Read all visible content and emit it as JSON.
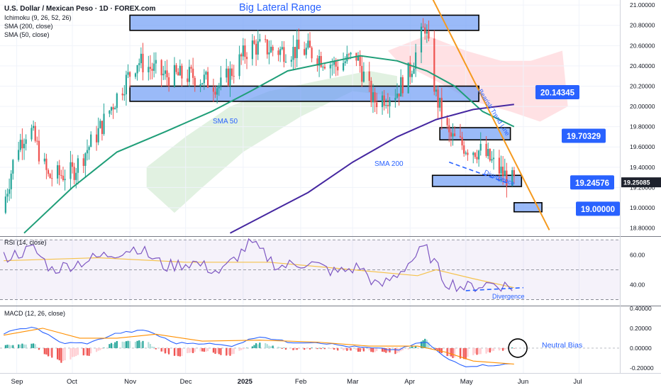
{
  "header": {
    "title": "U.S. Dollar / Mexican Peso · 1D · FOREX.com",
    "indicators": [
      "Ichimoku (9, 26, 52, 26)",
      "SMA (200, close)",
      "SMA (50, close)"
    ]
  },
  "colors": {
    "up": "#26a69a",
    "down": "#ef5350",
    "sma50": "#1f9e78",
    "sma200": "#4527a0",
    "trendline": "#f59a1f",
    "zone_fill": "#6f9cf5",
    "tag_fill": "#2962ff",
    "cloud_green": "#c8e6c9",
    "cloud_red": "#ffcdd2",
    "rsi_line": "#7e57c2",
    "rsi_ma": "#f5c24c",
    "macd_line": "#2962ff",
    "signal_line": "#ff8f00"
  },
  "chart_data": [
    {
      "type": "candlestick",
      "title": "U.S. Dollar / Mexican Peso · 1D · FOREX.com",
      "ylim": [
        18.72,
        21.05
      ],
      "y_ticks": [
        "21.00000",
        "20.80000",
        "20.60000",
        "20.40000",
        "20.20000",
        "20.00000",
        "19.80000",
        "19.60000",
        "19.40000",
        "19.20000",
        "19.00000",
        "18.80000"
      ],
      "x_ticks": [
        "Sep",
        "Oct",
        "Nov",
        "Dec",
        "2025",
        "Feb",
        "Mar",
        "Apr",
        "May",
        "Jun",
        "Jul"
      ],
      "x_range": [
        "2024-08-23",
        "2025-07-23"
      ],
      "price_anchors": [
        {
          "date": "2024-08-24",
          "close": 18.95
        },
        {
          "date": "2024-09-01",
          "close": 19.6
        },
        {
          "date": "2024-09-08",
          "close": 19.8
        },
        {
          "date": "2024-09-18",
          "close": 19.3
        },
        {
          "date": "2024-10-01",
          "close": 19.35
        },
        {
          "date": "2024-10-15",
          "close": 19.75
        },
        {
          "date": "2024-10-25",
          "close": 20.1
        },
        {
          "date": "2024-11-05",
          "close": 20.45
        },
        {
          "date": "2024-11-20",
          "close": 20.3
        },
        {
          "date": "2024-12-05",
          "close": 20.3
        },
        {
          "date": "2024-12-20",
          "close": 20.2
        },
        {
          "date": "2025-01-05",
          "close": 20.6
        },
        {
          "date": "2025-01-20",
          "close": 20.55
        },
        {
          "date": "2025-02-05",
          "close": 20.55
        },
        {
          "date": "2025-02-20",
          "close": 20.4
        },
        {
          "date": "2025-03-03",
          "close": 20.5
        },
        {
          "date": "2025-03-12",
          "close": 20.05
        },
        {
          "date": "2025-03-25",
          "close": 20.15
        },
        {
          "date": "2025-04-01",
          "close": 20.35
        },
        {
          "date": "2025-04-09",
          "close": 20.8
        },
        {
          "date": "2025-04-15",
          "close": 20.1
        },
        {
          "date": "2025-04-22",
          "close": 19.7
        },
        {
          "date": "2025-05-01",
          "close": 19.6
        },
        {
          "date": "2025-05-10",
          "close": 19.55
        },
        {
          "date": "2025-05-20",
          "close": 19.35
        },
        {
          "date": "2025-05-27",
          "close": 19.25
        }
      ],
      "sma_50": [
        {
          "date": "2024-09-05",
          "value": 18.75
        },
        {
          "date": "2024-10-01",
          "value": 19.2
        },
        {
          "date": "2024-10-25",
          "value": 19.55
        },
        {
          "date": "2024-11-20",
          "value": 19.75
        },
        {
          "date": "2024-12-15",
          "value": 19.95
        },
        {
          "date": "2025-01-05",
          "value": 20.15
        },
        {
          "date": "2025-01-25",
          "value": 20.35
        },
        {
          "date": "2025-02-20",
          "value": 20.45
        },
        {
          "date": "2025-03-05",
          "value": 20.5
        },
        {
          "date": "2025-03-25",
          "value": 20.45
        },
        {
          "date": "2025-04-10",
          "value": 20.35
        },
        {
          "date": "2025-04-25",
          "value": 20.2
        },
        {
          "date": "2025-05-10",
          "value": 19.95
        },
        {
          "date": "2025-05-27",
          "value": 19.8
        }
      ],
      "sma_200": [
        {
          "date": "2024-12-25",
          "value": 18.75
        },
        {
          "date": "2025-01-15",
          "value": 18.95
        },
        {
          "date": "2025-02-05",
          "value": 19.15
        },
        {
          "date": "2025-03-01",
          "value": 19.45
        },
        {
          "date": "2025-03-25",
          "value": 19.7
        },
        {
          "date": "2025-04-15",
          "value": 19.87
        },
        {
          "date": "2025-05-05",
          "value": 19.97
        },
        {
          "date": "2025-05-27",
          "value": 20.02
        }
      ],
      "zones": [
        {
          "label": "Big Lateral Range",
          "from": "2024-11-01",
          "to": "2025-05-08",
          "low": 20.75,
          "high": 20.9
        },
        {
          "label": "",
          "from": "2024-11-01",
          "to": "2025-05-08",
          "low": 20.05,
          "high": 20.2
        },
        {
          "label": "",
          "from": "2025-04-17",
          "to": "2025-05-25",
          "low": 19.67,
          "high": 19.79
        },
        {
          "label": "",
          "from": "2025-04-13",
          "to": "2025-05-31",
          "low": 19.21,
          "high": 19.32
        },
        {
          "label": "",
          "from": "2025-05-27",
          "to": "2025-06-11",
          "low": 18.96,
          "high": 19.05
        }
      ],
      "trendline": {
        "label": "Bearish Trend Line",
        "from": {
          "date": "2025-04-01",
          "value": 21.5
        },
        "to": {
          "date": "2025-06-15",
          "value": 18.78
        }
      },
      "divergence_line": {
        "label": "Divergence",
        "from": {
          "date": "2025-04-22",
          "value": 19.45
        },
        "to": {
          "date": "2025-05-24",
          "value": 19.24
        }
      },
      "price_tags": [
        {
          "label": "20.14345",
          "value": 20.14
        },
        {
          "label": "19.70329",
          "value": 19.71
        },
        {
          "label": "19.24576",
          "value": 19.25
        },
        {
          "label": "19.00000",
          "value": 18.99
        }
      ],
      "last_price": "19.25085",
      "annotations": [
        "Big Lateral Range",
        "SMA 50",
        "SMA 200",
        "Bearish Trend Line",
        "Divergence"
      ]
    },
    {
      "type": "line",
      "title": "RSI (14, close)",
      "ylim": [
        26,
        72
      ],
      "y_ticks": [
        "60.00",
        "40.00"
      ],
      "overbought": 70,
      "midline": 50,
      "oversold": 30,
      "rsi": [
        {
          "date": "2024-08-25",
          "value": 58
        },
        {
          "date": "2024-09-10",
          "value": 64
        },
        {
          "date": "2024-09-20",
          "value": 50
        },
        {
          "date": "2024-10-05",
          "value": 55
        },
        {
          "date": "2024-10-20",
          "value": 60
        },
        {
          "date": "2024-11-05",
          "value": 65
        },
        {
          "date": "2024-11-20",
          "value": 52
        },
        {
          "date": "2024-12-05",
          "value": 55
        },
        {
          "date": "2024-12-20",
          "value": 48
        },
        {
          "date": "2025-01-05",
          "value": 68
        },
        {
          "date": "2025-01-20",
          "value": 52
        },
        {
          "date": "2025-02-05",
          "value": 55
        },
        {
          "date": "2025-02-20",
          "value": 48
        },
        {
          "date": "2025-03-05",
          "value": 52
        },
        {
          "date": "2025-03-15",
          "value": 38
        },
        {
          "date": "2025-03-25",
          "value": 47
        },
        {
          "date": "2025-04-09",
          "value": 65
        },
        {
          "date": "2025-04-20",
          "value": 42
        },
        {
          "date": "2025-05-01",
          "value": 38
        },
        {
          "date": "2025-05-15",
          "value": 41
        },
        {
          "date": "2025-05-27",
          "value": 38
        }
      ],
      "rsi_ma": [
        {
          "date": "2024-08-25",
          "value": 56
        },
        {
          "date": "2024-10-15",
          "value": 58
        },
        {
          "date": "2024-12-01",
          "value": 55
        },
        {
          "date": "2025-01-15",
          "value": 55
        },
        {
          "date": "2025-03-01",
          "value": 50
        },
        {
          "date": "2025-04-05",
          "value": 46
        },
        {
          "date": "2025-04-15",
          "value": 50
        },
        {
          "date": "2025-05-05",
          "value": 44
        },
        {
          "date": "2025-05-27",
          "value": 38
        }
      ],
      "divergence_line": {
        "label": "Divergence",
        "from": {
          "date": "2025-05-01",
          "value": 36
        },
        "to": {
          "date": "2025-06-01",
          "value": 38
        }
      }
    },
    {
      "type": "bar",
      "title": "MACD (12, 26, close)",
      "ylim": [
        -0.25,
        0.42
      ],
      "y_ticks": [
        "0.40000",
        "0.20000",
        "0.00000",
        "-0.20000"
      ],
      "macd": [
        {
          "date": "2024-08-25",
          "value": 0.15
        },
        {
          "date": "2024-09-10",
          "value": 0.22
        },
        {
          "date": "2024-09-25",
          "value": 0.05
        },
        {
          "date": "2024-10-10",
          "value": 0.05
        },
        {
          "date": "2024-10-25",
          "value": 0.15
        },
        {
          "date": "2024-11-10",
          "value": 0.18
        },
        {
          "date": "2024-11-25",
          "value": 0.05
        },
        {
          "date": "2024-12-10",
          "value": 0.05
        },
        {
          "date": "2024-12-25",
          "value": 0.02
        },
        {
          "date": "2025-01-10",
          "value": 0.12
        },
        {
          "date": "2025-01-25",
          "value": 0.06
        },
        {
          "date": "2025-02-10",
          "value": 0.06
        },
        {
          "date": "2025-02-25",
          "value": 0.02
        },
        {
          "date": "2025-03-10",
          "value": 0.0
        },
        {
          "date": "2025-03-25",
          "value": -0.02
        },
        {
          "date": "2025-04-09",
          "value": 0.07
        },
        {
          "date": "2025-04-20",
          "value": -0.1
        },
        {
          "date": "2025-05-01",
          "value": -0.18
        },
        {
          "date": "2025-05-15",
          "value": -0.17
        },
        {
          "date": "2025-05-27",
          "value": -0.16
        }
      ],
      "signal": [
        {
          "date": "2024-08-25",
          "value": 0.13
        },
        {
          "date": "2024-09-15",
          "value": 0.2
        },
        {
          "date": "2024-10-05",
          "value": 0.1
        },
        {
          "date": "2024-10-25",
          "value": 0.1
        },
        {
          "date": "2024-11-15",
          "value": 0.14
        },
        {
          "date": "2024-12-10",
          "value": 0.07
        },
        {
          "date": "2025-01-10",
          "value": 0.08
        },
        {
          "date": "2025-02-10",
          "value": 0.06
        },
        {
          "date": "2025-03-10",
          "value": 0.02
        },
        {
          "date": "2025-04-05",
          "value": 0.02
        },
        {
          "date": "2025-04-20",
          "value": -0.04
        },
        {
          "date": "2025-05-05",
          "value": -0.13
        },
        {
          "date": "2025-05-27",
          "value": -0.16
        }
      ],
      "annotation": "Neutral Bias"
    }
  ]
}
